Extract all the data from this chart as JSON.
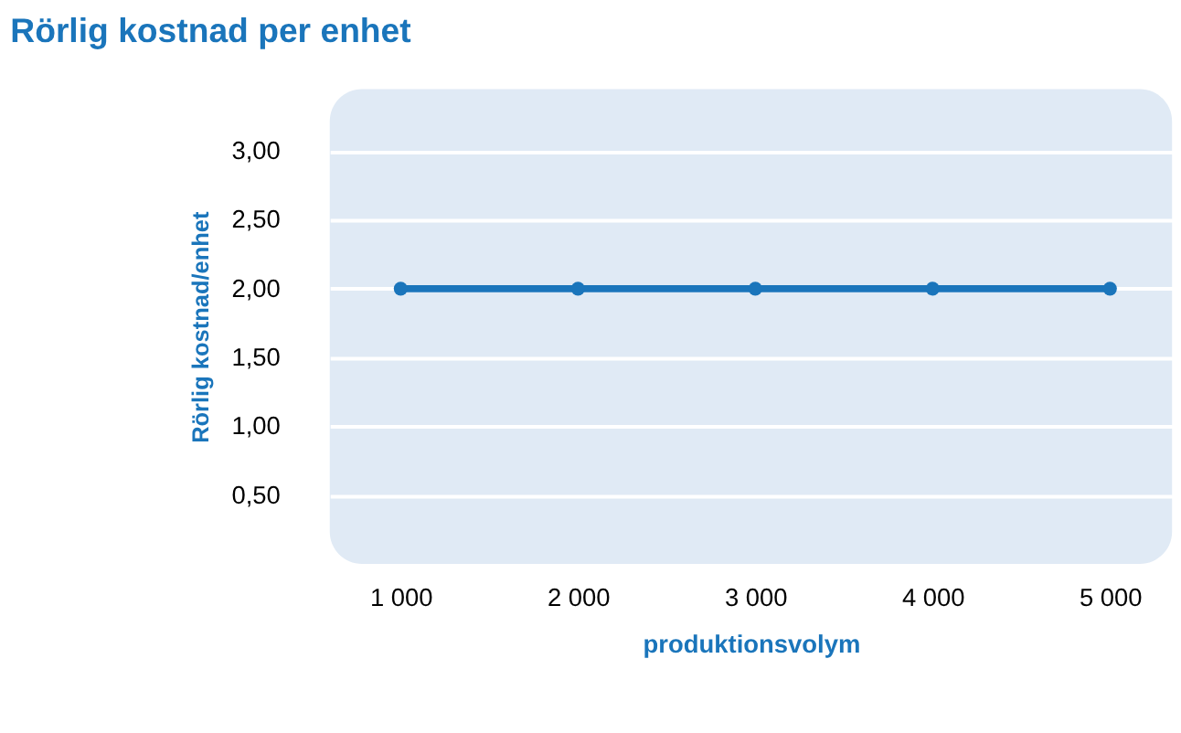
{
  "chart_data": {
    "type": "line",
    "title": "Rörlig kostnad per enhet",
    "xlabel": "produktionsvolym",
    "ylabel": "Rörlig kostnad/enhet",
    "x": [
      1000,
      2000,
      3000,
      4000,
      5000
    ],
    "series": [
      {
        "color": "#1a75bb",
        "values": [
          2.0,
          2.0,
          2.0,
          2.0,
          2.0
        ]
      }
    ],
    "xlim": [
      600,
      5350
    ],
    "xticks": [
      {
        "value": 1000,
        "label": "1 000"
      },
      {
        "value": 2000,
        "label": "2 000"
      },
      {
        "value": 3000,
        "label": "3 000"
      },
      {
        "value": 4000,
        "label": "4 000"
      },
      {
        "value": 5000,
        "label": "5 000"
      }
    ],
    "ylim": [
      0,
      3.45
    ],
    "yticks": [
      {
        "value": 0.5,
        "label": "0,50"
      },
      {
        "value": 1,
        "label": "1,00"
      },
      {
        "value": 1.5,
        "label": "1,50"
      },
      {
        "value": 2,
        "label": "2,00"
      },
      {
        "value": 2.5,
        "label": "2,50"
      },
      {
        "value": 3,
        "label": "3,00"
      }
    ],
    "grid": "y",
    "marker": "circle",
    "line_style": "solid"
  }
}
